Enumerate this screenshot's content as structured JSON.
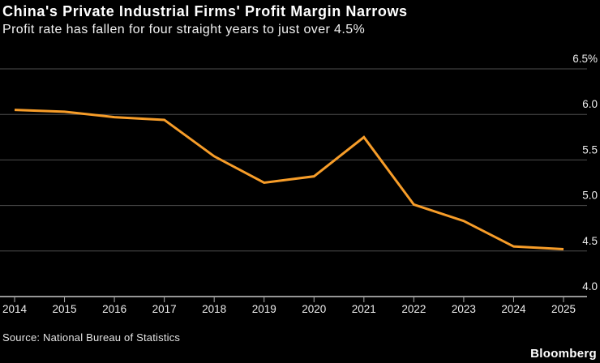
{
  "header": {
    "title": "China's Private Industrial Firms' Profit Margin Narrows",
    "subtitle": "Profit rate has fallen for four straight years to just over 4.5%"
  },
  "footer": {
    "source": "Source: National Bureau of Statistics",
    "brand": "Bloomberg"
  },
  "colors": {
    "background": "#000000",
    "line": "#F79D29",
    "gridline": "#4E4E4E",
    "axis": "#C8C8C8",
    "tick": "#ABABAB",
    "axis_label": "#ECECEC"
  },
  "chart_data": {
    "type": "line",
    "title": "China's Private Industrial Firms' Profit Margin Narrows",
    "subtitle": "Profit rate has fallen for four straight years to just over 4.5%",
    "x": [
      2014,
      2015,
      2016,
      2017,
      2018,
      2019,
      2020,
      2021,
      2022,
      2023,
      2024,
      2025
    ],
    "x_tick_labels": [
      "2014",
      "2015",
      "2016",
      "2017",
      "2018",
      "2019",
      "2020",
      "2021",
      "2022",
      "2023",
      "2024",
      "2025"
    ],
    "series": [
      {
        "name": "Private industrial firms' profit margin (%)",
        "color": "#F79D29",
        "values": [
          6.05,
          6.03,
          5.97,
          5.94,
          5.54,
          5.25,
          5.32,
          5.75,
          5.01,
          4.83,
          4.55,
          4.52
        ]
      }
    ],
    "xlabel": "",
    "ylabel": "%",
    "ylim": [
      4.0,
      6.5
    ],
    "y_ticks": [
      {
        "value": 6.5,
        "label": "6.5%"
      },
      {
        "value": 6.0,
        "label": "6.0"
      },
      {
        "value": 5.5,
        "label": "5.5"
      },
      {
        "value": 5.0,
        "label": "5.0"
      },
      {
        "value": 4.5,
        "label": "4.5"
      },
      {
        "value": 4.0,
        "label": "4.0"
      }
    ],
    "grid": "horizontal",
    "legend": "none",
    "y_axis_side": "right"
  }
}
